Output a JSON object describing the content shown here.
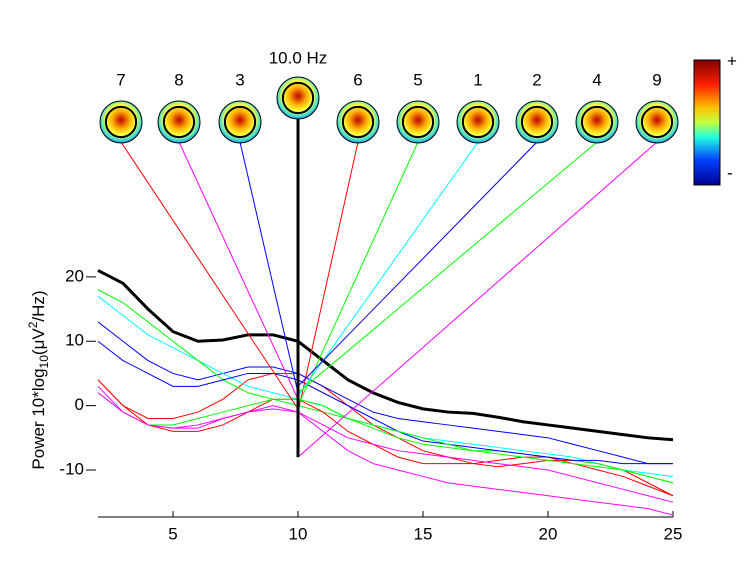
{
  "chart_data": {
    "type": "line",
    "ylabel_parts": [
      "Power 10*log",
      "10",
      "(μV",
      "2",
      "/Hz)"
    ],
    "x": [
      2,
      3,
      4,
      5,
      6,
      7,
      8,
      9,
      10,
      11,
      12,
      13,
      14,
      15,
      16,
      17,
      18,
      19,
      20,
      21,
      22,
      23,
      24,
      25
    ],
    "xlim": [
      2,
      25
    ],
    "xticks": [
      5,
      10,
      15,
      20,
      25
    ],
    "ylim": [
      -17.3,
      22
    ],
    "yticks": [
      -10,
      0,
      10,
      20
    ],
    "series": [
      {
        "color": "#000000",
        "width": 3,
        "values": [
          21,
          19,
          15,
          11.5,
          10,
          10.2,
          11,
          11,
          10,
          7,
          4,
          2,
          0.5,
          -0.5,
          -1,
          -1.2,
          -1.8,
          -2.5,
          -3,
          -3.5,
          -4,
          -4.5,
          -5,
          -5.3
        ]
      },
      {
        "color": "#ff0000",
        "values": [
          4,
          0,
          -2,
          -2,
          -1,
          1,
          4,
          5,
          5,
          3,
          0,
          -3,
          -5,
          -7,
          -8,
          -9,
          -9.5,
          -9,
          -8.5,
          -8.5,
          -9,
          -10,
          -12,
          -14
        ]
      },
      {
        "color": "#ff00ff",
        "values": [
          3,
          -1,
          -3,
          -3.5,
          -3,
          -2,
          -1,
          0,
          -1,
          -4,
          -7,
          -9,
          -10,
          -11,
          -12,
          -12.5,
          -13,
          -13.5,
          -14,
          -14.5,
          -15,
          -15.5,
          -16,
          -17
        ]
      },
      {
        "color": "#0000ff",
        "values": [
          13,
          10,
          7,
          5,
          4,
          5,
          6,
          6,
          5,
          3,
          1,
          -1,
          -2,
          -2.5,
          -3,
          -3.5,
          -4,
          -4.5,
          -5,
          -6,
          -7,
          -8,
          -9,
          -9
        ]
      },
      {
        "color": "#00ffff",
        "values": [
          17,
          14,
          11,
          9,
          7,
          5,
          3,
          2,
          1,
          0,
          -2,
          -3,
          -4,
          -5,
          -5.5,
          -6,
          -6.5,
          -7,
          -7.5,
          -8,
          -9,
          -10,
          -10.5,
          -11
        ]
      },
      {
        "color": "#00ff00",
        "values": [
          18,
          16,
          13,
          10,
          7,
          4,
          2,
          1,
          0,
          -1,
          -2,
          -3.5,
          -5,
          -6,
          -6.5,
          -7,
          -7,
          -7.5,
          -8,
          -8.5,
          -9,
          -10,
          -11,
          -12
        ]
      },
      {
        "color": "#ff0000",
        "values": [
          4,
          0,
          -3,
          -4,
          -4,
          -3,
          -1,
          1,
          1,
          -1,
          -4,
          -6,
          -8,
          -9,
          -9,
          -9,
          -8.5,
          -8,
          -8,
          -9,
          -10,
          -11,
          -12.5,
          -14
        ]
      },
      {
        "color": "#0000ff",
        "values": [
          10,
          7,
          5,
          3,
          3,
          4,
          5,
          5,
          4,
          2,
          0,
          -2,
          -4,
          -5.5,
          -6,
          -6.5,
          -7,
          -7.5,
          -8,
          -8.5,
          -8.5,
          -9,
          -9,
          -9
        ]
      },
      {
        "color": "#00ff00",
        "values": [
          2,
          -1,
          -3,
          -3,
          -2,
          -1,
          0,
          1,
          1,
          0,
          -2,
          -3,
          -4,
          -5,
          -6,
          -7,
          -7.5,
          -8,
          -8.5,
          -9,
          -9.5,
          -10,
          -11,
          -12
        ]
      },
      {
        "color": "#ff00ff",
        "values": [
          2,
          -1,
          -3,
          -3.5,
          -3.5,
          -2,
          -1,
          -0.5,
          -1,
          -3,
          -5,
          -6,
          -7,
          -7.5,
          -8,
          -8.5,
          -9,
          -9.5,
          -10,
          -11,
          -12,
          -13,
          -14,
          -15
        ]
      }
    ],
    "frequency_map": {
      "label": "10.0 Hz",
      "x": 10,
      "value": -8,
      "color": "#000000"
    },
    "component_maps": [
      {
        "label": "7",
        "color": "#ff0000",
        "value": -0.5
      },
      {
        "label": "8",
        "color": "#ff00ff",
        "value": 1
      },
      {
        "label": "3",
        "color": "#0000ff",
        "value": 2
      },
      {
        "label": "6",
        "color": "#ff0000",
        "value": -1
      },
      {
        "label": "5",
        "color": "#00ff00",
        "value": 0
      },
      {
        "label": "1",
        "color": "#00ffff",
        "value": 1.5
      },
      {
        "label": "2",
        "color": "#0000ff",
        "value": 3
      },
      {
        "label": "4",
        "color": "#00ff00",
        "value": 2
      },
      {
        "label": "9",
        "color": "#ff00ff",
        "value": -8
      }
    ],
    "colorbar_labels": [
      "+",
      "-"
    ]
  }
}
